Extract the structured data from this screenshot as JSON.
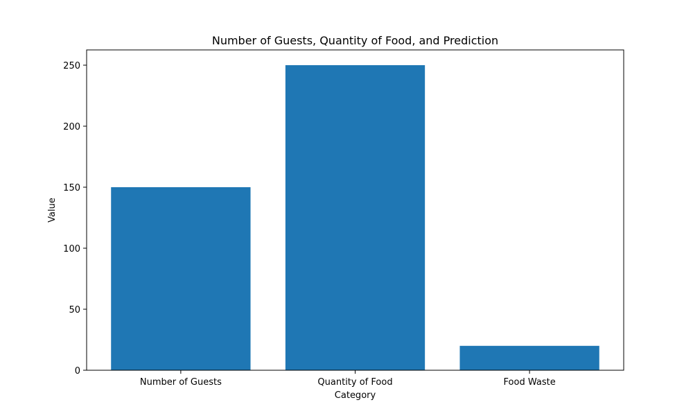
{
  "chart_data": {
    "type": "bar",
    "title": "Number of Guests, Quantity of Food, and Prediction",
    "xlabel": "Category",
    "ylabel": "Value",
    "categories": [
      "Number of Guests",
      "Quantity of Food",
      "Food Waste"
    ],
    "values": [
      150,
      250,
      20
    ],
    "ylim": [
      0,
      262.5
    ],
    "yticks": [
      0,
      50,
      100,
      150,
      200,
      250
    ],
    "bar_color": "#1f77b4",
    "grid": false,
    "legend": "none"
  }
}
